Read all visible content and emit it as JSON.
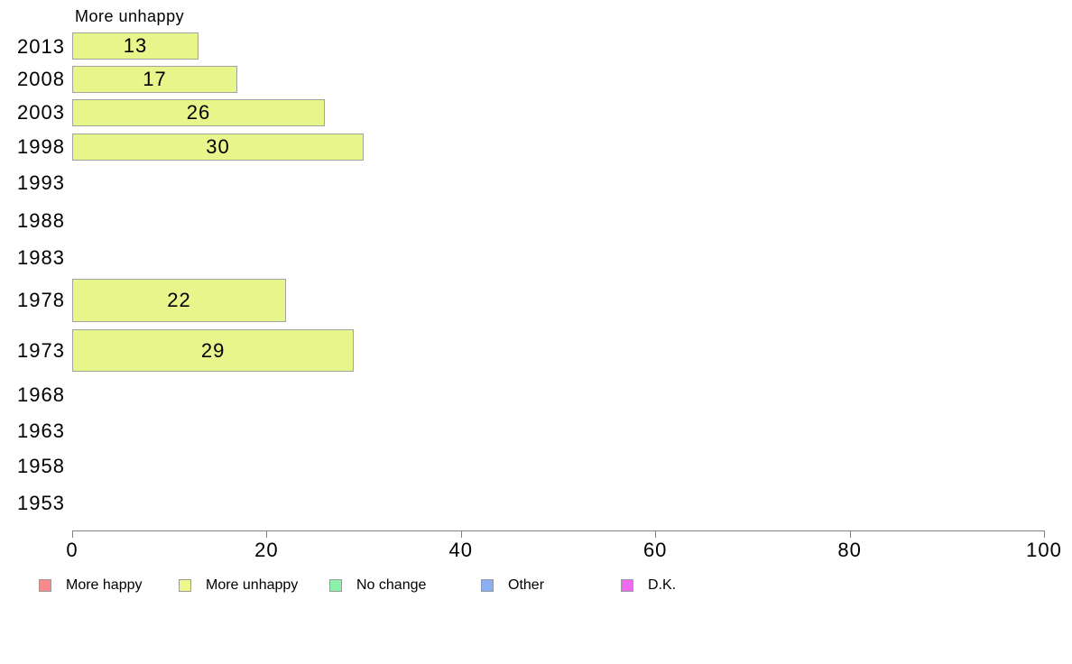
{
  "chart_data": {
    "type": "bar",
    "orientation": "horizontal",
    "title": "More unhappy",
    "categories": [
      "2013",
      "2008",
      "2003",
      "1998",
      "1993",
      "1988",
      "1983",
      "1978",
      "1973",
      "1968",
      "1963",
      "1958",
      "1953"
    ],
    "series": [
      {
        "name": "More unhappy",
        "color": "#e8f58a",
        "values": [
          13,
          17,
          26,
          30,
          null,
          null,
          null,
          22,
          29,
          null,
          null,
          null,
          null
        ]
      }
    ],
    "xlim": [
      0,
      100
    ],
    "xticks": [
      0,
      20,
      40,
      60,
      80,
      100
    ],
    "xlabel": "",
    "ylabel": "",
    "grid": false,
    "legend_position": "bottom",
    "legend": [
      {
        "label": "More happy",
        "color": "#f8898c"
      },
      {
        "label": "More unhappy",
        "color": "#edf78c"
      },
      {
        "label": "No change",
        "color": "#8bf2ab"
      },
      {
        "label": "Other",
        "color": "#8aaff2"
      },
      {
        "label": "D.K.",
        "color": "#ef69ef"
      }
    ]
  }
}
